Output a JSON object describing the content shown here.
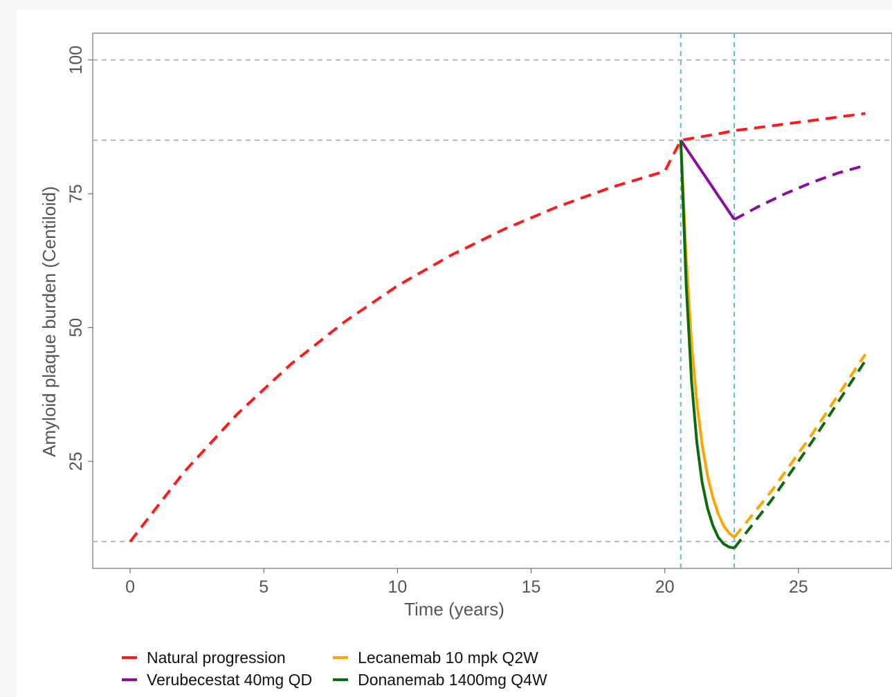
{
  "chart_data": {
    "type": "line",
    "xlabel": "Time (years)",
    "ylabel": "Amyloid plaque burden (Centiloid)",
    "xlim": [
      -1.4,
      28.5
    ],
    "ylim": [
      5,
      105
    ],
    "xticks": [
      0,
      5,
      10,
      15,
      20,
      25
    ],
    "yticks": [
      25,
      50,
      75,
      100
    ],
    "reference_hlines": [
      100,
      85,
      10
    ],
    "reference_vlines": [
      20.6,
      22.6
    ],
    "legend_position": "bottom",
    "series": [
      {
        "name": "Natural progression",
        "color": "#ff1a1a",
        "style": "dashed",
        "x": [
          0,
          2,
          4,
          6,
          8,
          10,
          12,
          14,
          16,
          18,
          20,
          20.6,
          22,
          22.6,
          24,
          26,
          27.5
        ],
        "y": [
          10,
          22.9,
          33.8,
          43.1,
          51.0,
          57.8,
          63.5,
          68.4,
          72.6,
          76.2,
          79.2,
          85,
          86.2,
          86.8,
          87.7,
          89.0,
          90.0
        ]
      },
      {
        "name": "Verubecestat 40mg QD",
        "color": "#8b0c9e",
        "style": "solid",
        "x": [
          20.6,
          22.6
        ],
        "y": [
          85,
          70.2
        ]
      },
      {
        "name": "Verubecestat 40mg QD",
        "color": "#8b0c9e",
        "style": "dashed",
        "x": [
          22.6,
          23.5,
          24.5,
          25.5,
          26.5,
          27.5
        ],
        "y": [
          70.2,
          72.6,
          75.0,
          77.1,
          78.9,
          80.3
        ]
      },
      {
        "name": "Lecanemab 10 mpk Q2W",
        "color": "#ffa500",
        "style": "solid",
        "x": [
          20.6,
          20.8,
          21.0,
          21.2,
          21.4,
          21.6,
          21.8,
          22.0,
          22.2,
          22.4,
          22.6
        ],
        "y": [
          85,
          63.0,
          47.0,
          36.0,
          28.0,
          22.3,
          18.2,
          15.2,
          13.0,
          11.6,
          10.8
        ]
      },
      {
        "name": "Lecanemab 10 mpk Q2W",
        "color": "#ffa500",
        "style": "dashed",
        "x": [
          22.6,
          24.0,
          25.5,
          27.5
        ],
        "y": [
          10.8,
          19.5,
          30.0,
          45.0
        ]
      },
      {
        "name": "Donanemab 1400mg Q4W",
        "color": "#0d6b0d",
        "style": "solid",
        "x": [
          20.6,
          20.8,
          21.0,
          21.2,
          21.4,
          21.6,
          21.8,
          22.0,
          22.2,
          22.4,
          22.6
        ],
        "y": [
          85,
          58.0,
          40.0,
          28.5,
          21.0,
          16.2,
          13.0,
          10.8,
          9.6,
          9.0,
          8.8
        ]
      },
      {
        "name": "Donanemab 1400mg Q4W",
        "color": "#0d6b0d",
        "style": "dashed",
        "x": [
          22.6,
          24.0,
          25.5,
          27.5
        ],
        "y": [
          8.8,
          17.8,
          28.6,
          43.8
        ]
      }
    ]
  },
  "legend": [
    {
      "label": "Natural progression",
      "color": "#ff1a1a"
    },
    {
      "label": "Lecanemab 10 mpk Q2W",
      "color": "#ffa500"
    },
    {
      "label": "Verubecestat 40mg QD",
      "color": "#8b0c9e"
    },
    {
      "label": "Donanemab 1400mg Q4W",
      "color": "#0d6b0d"
    }
  ]
}
